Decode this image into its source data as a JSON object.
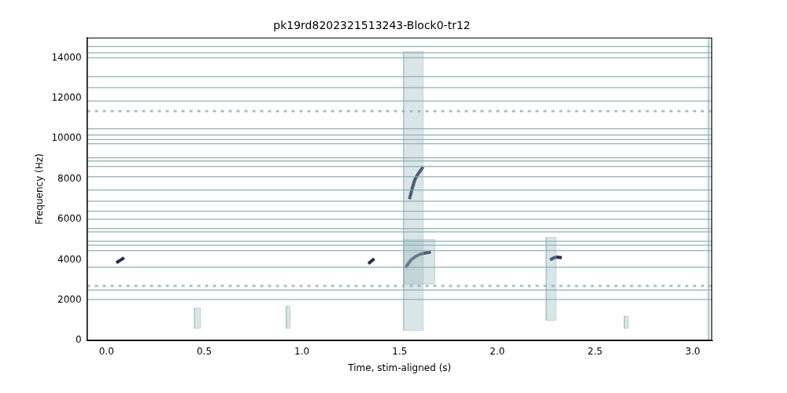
{
  "chart_data": {
    "type": "spectrogram",
    "title": "pk19rd8202321513243-Block0-tr12",
    "x_label": "Time, stim-aligned (s)",
    "y_label": "Frequency (Hz)",
    "xlim": [
      -0.1,
      3.1
    ],
    "ylim": [
      0,
      15000
    ],
    "xticks": [
      {
        "value": 0,
        "label": "0.0"
      },
      0.5,
      {
        "value": 1,
        "label": "1.0"
      },
      1.5,
      {
        "value": 2,
        "label": "2.0"
      },
      2.5,
      {
        "value": 3,
        "label": "3.0"
      }
    ],
    "yticks": [
      0,
      2000,
      4000,
      6000,
      8000,
      10000,
      12000,
      14000
    ],
    "grid": false,
    "noise_bands": [
      {
        "freq": 14550
      },
      {
        "freq": 14240
      },
      {
        "freq": 14000
      },
      {
        "freq": 13070
      },
      {
        "freq": 12520
      },
      {
        "freq": 11860
      },
      {
        "freq": 11350,
        "line_style": "dotted"
      },
      {
        "freq": 10490
      },
      {
        "freq": 10180
      },
      {
        "freq": 9950
      },
      {
        "freq": 9750
      },
      {
        "freq": 9050
      },
      {
        "freq": 8890
      },
      {
        "freq": 8620
      },
      {
        "freq": 8110
      },
      {
        "freq": 7450
      },
      {
        "freq": 6900
      },
      {
        "freq": 6400
      },
      {
        "freq": 6000
      },
      {
        "freq": 5540
      },
      {
        "freq": 5380
      },
      {
        "freq": 4910
      },
      {
        "freq": 4720
      },
      {
        "freq": 4450
      },
      {
        "freq": 3630
      },
      {
        "freq": 2700,
        "line_style": "dotted"
      },
      {
        "freq": 2500
      },
      {
        "freq": 2030
      }
    ],
    "broadband_events": [
      {
        "time": [
          1.52,
          1.62
        ],
        "freq": [
          500,
          14300
        ]
      },
      {
        "time": [
          1.52,
          1.68
        ],
        "freq": [
          2800,
          5000
        ]
      },
      {
        "time": [
          2.25,
          2.3
        ],
        "freq": [
          1000,
          5100
        ]
      },
      {
        "time": [
          0.45,
          0.48
        ],
        "freq": [
          600,
          1600
        ]
      },
      {
        "time": [
          0.92,
          0.94
        ],
        "freq": [
          600,
          1700
        ]
      },
      {
        "time": [
          2.65,
          2.67
        ],
        "freq": [
          600,
          1200
        ]
      },
      {
        "time": [
          3.08,
          3.1
        ],
        "freq": [
          0,
          15000
        ]
      }
    ],
    "tonal_traces": [
      {
        "time": [
          1.53,
          1.56,
          1.6,
          1.66
        ],
        "freq": [
          3600,
          4000,
          4250,
          4380
        ]
      },
      {
        "time": [
          1.55,
          1.58,
          1.62
        ],
        "freq": [
          7000,
          8000,
          8600
        ]
      },
      {
        "time": [
          0.05,
          0.09
        ],
        "freq": [
          3850,
          4100
        ]
      },
      {
        "time": [
          1.34,
          1.37
        ],
        "freq": [
          3800,
          4050
        ]
      },
      {
        "time": [
          2.27,
          2.3,
          2.33
        ],
        "freq": [
          4000,
          4120,
          4100
        ]
      }
    ]
  }
}
